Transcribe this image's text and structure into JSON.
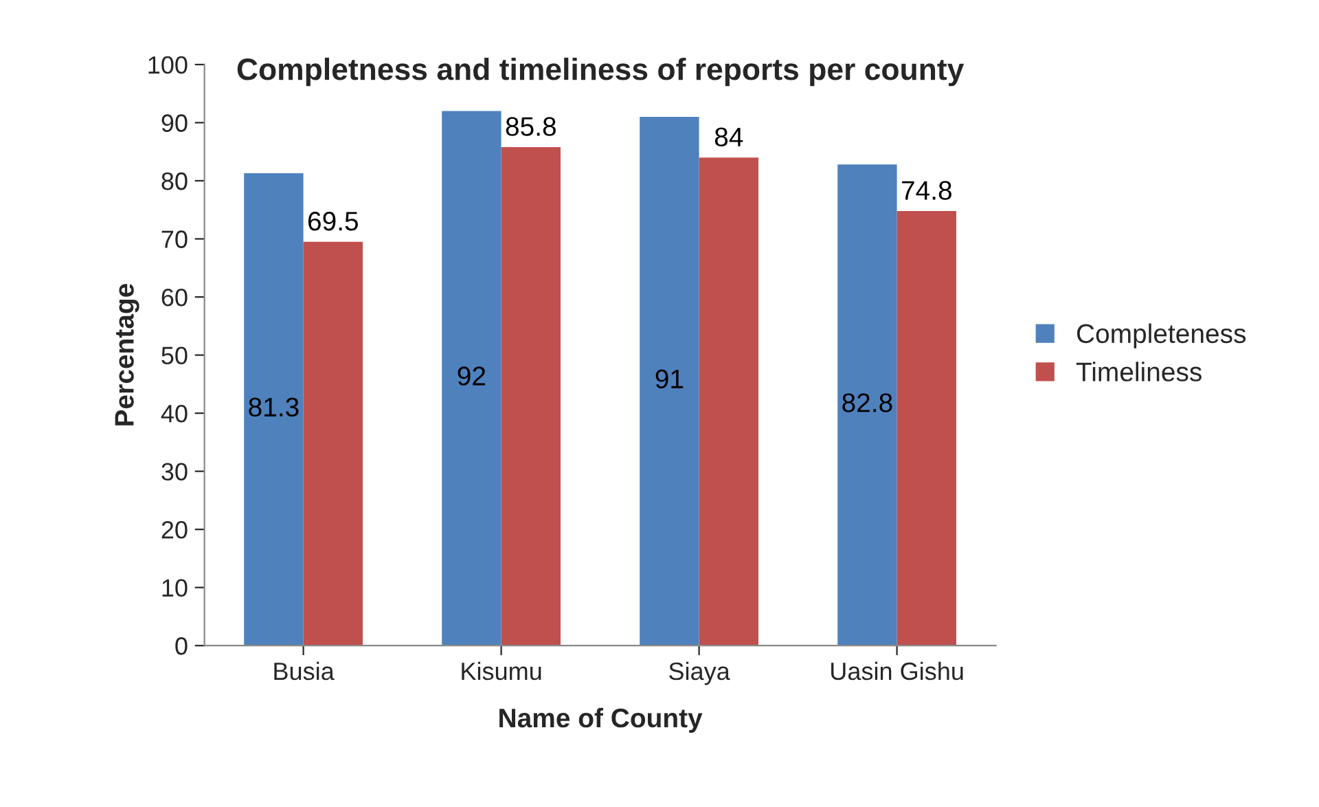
{
  "chart_data": {
    "type": "bar",
    "title": "Completness and timeliness of reports per county",
    "xlabel": "Name of County",
    "ylabel": "Percentage",
    "categories": [
      "Busia",
      "Kisumu",
      "Siaya",
      "Uasin Gishu"
    ],
    "series": [
      {
        "name": "Completeness",
        "color": "#4f81bd",
        "values": [
          81.3,
          92,
          91,
          82.8
        ]
      },
      {
        "name": "Timeliness",
        "color": "#c0504d",
        "values": [
          69.5,
          85.8,
          84,
          74.8
        ]
      }
    ],
    "ylim": [
      0,
      100
    ],
    "yticks": [
      0,
      10,
      20,
      30,
      40,
      50,
      60,
      70,
      80,
      90,
      100
    ],
    "grid": false,
    "legend": "right",
    "data_labels": true
  }
}
